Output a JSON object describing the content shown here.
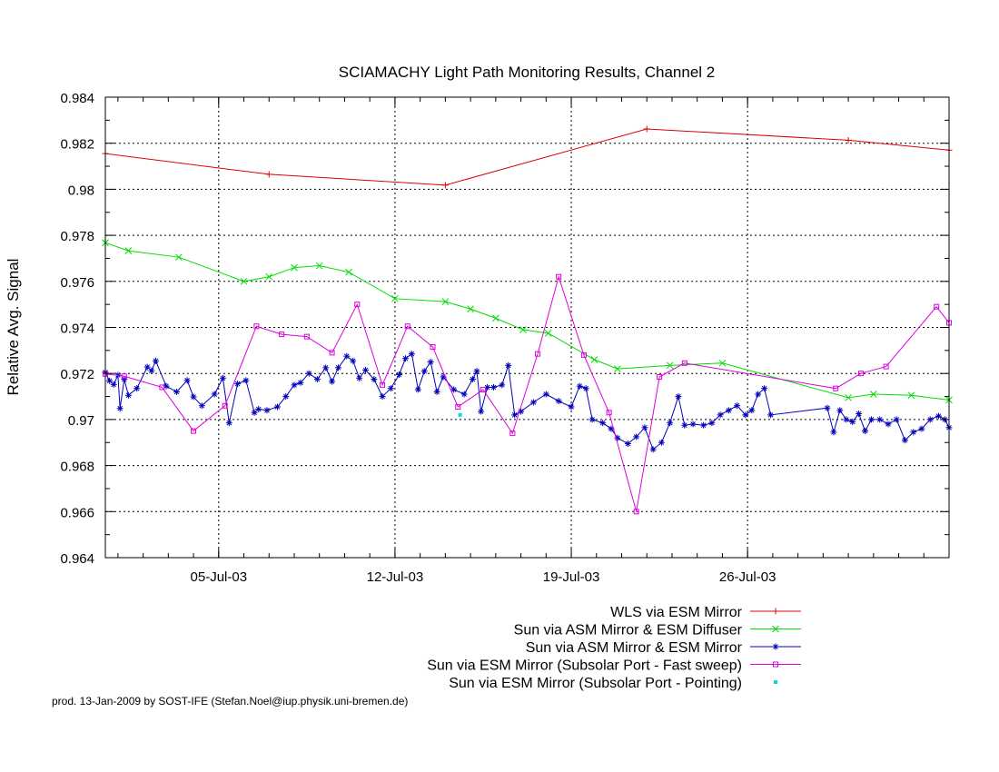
{
  "chart_data": {
    "type": "line",
    "title": "SCIAMACHY Light Path Monitoring Results, Channel 2",
    "ylabel": "Relative Avg. Signal",
    "xlabel": "",
    "footer": "prod. 13-Jan-2009 by SOST-IFE (Stefan.Noel@iup.physik.uni-bremen.de)",
    "xlim": [
      "2003-06-30T12:00",
      "2003-08-03T00:00"
    ],
    "ylim": [
      0.964,
      0.984
    ],
    "yticks": [
      0.964,
      0.966,
      0.968,
      0.97,
      0.972,
      0.974,
      0.976,
      0.978,
      0.98,
      0.982,
      0.984
    ],
    "ytick_labels": [
      "0.964",
      "0.966",
      "0.968",
      "0.97",
      "0.972",
      "0.974",
      "0.976",
      "0.978",
      "0.98",
      "0.982",
      "0.984"
    ],
    "xticks": [
      "2003-07-05",
      "2003-07-12",
      "2003-07-19",
      "2003-07-26"
    ],
    "xtick_labels": [
      "05-Jul-03",
      "12-Jul-03",
      "19-Jul-03",
      "26-Jul-03"
    ],
    "grid": true,
    "legend_position": "bottom-right, below plot",
    "series": [
      {
        "name": "WLS via ESM Mirror",
        "color": "#dd0000",
        "marker": "plus",
        "points": [
          [
            "2003-06-30T12:00",
            0.98155
          ],
          [
            "2003-07-07T00:00",
            0.98065
          ],
          [
            "2003-07-14T00:00",
            0.98018
          ],
          [
            "2003-07-22T00:00",
            0.98262
          ],
          [
            "2003-07-30T00:00",
            0.98213
          ],
          [
            "2003-08-03T00:00",
            0.9817
          ]
        ]
      },
      {
        "name": "Sun via ASM Mirror & ESM Diffuser",
        "color": "#00dd00",
        "marker": "cross",
        "points": [
          [
            "2003-06-30T12:00",
            0.97768
          ],
          [
            "2003-07-01T10:00",
            0.97733
          ],
          [
            "2003-07-03T10:00",
            0.97705
          ],
          [
            "2003-07-06T00:00",
            0.976
          ],
          [
            "2003-07-07T00:00",
            0.9762
          ],
          [
            "2003-07-08T00:00",
            0.9766
          ],
          [
            "2003-07-09T00:00",
            0.97668
          ],
          [
            "2003-07-10T04:00",
            0.9764
          ],
          [
            "2003-07-12T00:00",
            0.97525
          ],
          [
            "2003-07-14T00:00",
            0.97512
          ],
          [
            "2003-07-15T00:00",
            0.9748
          ],
          [
            "2003-07-16T00:00",
            0.9744
          ],
          [
            "2003-07-17T02:00",
            0.9739
          ],
          [
            "2003-07-18T02:00",
            0.97375
          ],
          [
            "2003-07-19T22:00",
            0.9726
          ],
          [
            "2003-07-20T20:00",
            0.9722
          ],
          [
            "2003-07-22T22:00",
            0.97235
          ],
          [
            "2003-07-25T00:00",
            0.97245
          ],
          [
            "2003-07-30T00:00",
            0.97095
          ],
          [
            "2003-07-31T00:00",
            0.9711
          ],
          [
            "2003-08-01T12:00",
            0.97105
          ],
          [
            "2003-08-03T00:00",
            0.97085
          ]
        ]
      },
      {
        "name": "Sun via ASM Mirror & ESM Mirror",
        "color": "#0000bb",
        "marker": "star",
        "points": [
          [
            "2003-06-30T12:00",
            0.97205
          ],
          [
            "2003-06-30T16:00",
            0.97168
          ],
          [
            "2003-06-30T20:00",
            0.97152
          ],
          [
            "2003-07-01T00:00",
            0.97193
          ],
          [
            "2003-07-01T02:00",
            0.97048
          ],
          [
            "2003-07-01T06:00",
            0.97175
          ],
          [
            "2003-07-01T10:00",
            0.97105
          ],
          [
            "2003-07-01T18:00",
            0.97135
          ],
          [
            "2003-07-02T04:00",
            0.97228
          ],
          [
            "2003-07-02T08:00",
            0.97212
          ],
          [
            "2003-07-02T12:00",
            0.97255
          ],
          [
            "2003-07-02T22:00",
            0.97145
          ],
          [
            "2003-07-03T08:00",
            0.9712
          ],
          [
            "2003-07-03T18:00",
            0.9717
          ],
          [
            "2003-07-04T00:00",
            0.97098
          ],
          [
            "2003-07-04T08:00",
            0.9706
          ],
          [
            "2003-07-04T20:00",
            0.9711
          ],
          [
            "2003-07-05T04:00",
            0.9718
          ],
          [
            "2003-07-05T10:00",
            0.96985
          ],
          [
            "2003-07-05T18:00",
            0.97155
          ],
          [
            "2003-07-06T02:00",
            0.9717
          ],
          [
            "2003-07-06T10:00",
            0.9703
          ],
          [
            "2003-07-06T14:00",
            0.97045
          ],
          [
            "2003-07-06T22:00",
            0.9704
          ],
          [
            "2003-07-07T08:00",
            0.97055
          ],
          [
            "2003-07-07T16:00",
            0.971
          ],
          [
            "2003-07-08T00:00",
            0.9715
          ],
          [
            "2003-07-08T06:00",
            0.9716
          ],
          [
            "2003-07-08T14:00",
            0.972
          ],
          [
            "2003-07-08T22:00",
            0.97175
          ],
          [
            "2003-07-09T06:00",
            0.97225
          ],
          [
            "2003-07-09T12:00",
            0.97165
          ],
          [
            "2003-07-09T18:00",
            0.97225
          ],
          [
            "2003-07-10T02:00",
            0.97275
          ],
          [
            "2003-07-10T08:00",
            0.97255
          ],
          [
            "2003-07-10T14:00",
            0.9718
          ],
          [
            "2003-07-10T20:00",
            0.97215
          ],
          [
            "2003-07-11T04:00",
            0.97175
          ],
          [
            "2003-07-11T12:00",
            0.971
          ],
          [
            "2003-07-11T20:00",
            0.97135
          ],
          [
            "2003-07-12T04:00",
            0.97195
          ],
          [
            "2003-07-12T10:00",
            0.97265
          ],
          [
            "2003-07-12T16:00",
            0.97285
          ],
          [
            "2003-07-12T22:00",
            0.9713
          ],
          [
            "2003-07-13T04:00",
            0.9721
          ],
          [
            "2003-07-13T10:00",
            0.9725
          ],
          [
            "2003-07-13T16:00",
            0.9712
          ],
          [
            "2003-07-13T22:00",
            0.97185
          ],
          [
            "2003-07-14T08:00",
            0.9713
          ],
          [
            "2003-07-14T18:00",
            0.9711
          ],
          [
            "2003-07-15T02:00",
            0.97175
          ],
          [
            "2003-07-15T06:00",
            0.9721
          ],
          [
            "2003-07-15T10:00",
            0.97035
          ],
          [
            "2003-07-15T16:00",
            0.9714
          ],
          [
            "2003-07-15T22:00",
            0.9714
          ],
          [
            "2003-07-16T06:00",
            0.9715
          ],
          [
            "2003-07-16T12:00",
            0.97235
          ],
          [
            "2003-07-16T18:00",
            0.9702
          ],
          [
            "2003-07-17T00:00",
            0.97035
          ],
          [
            "2003-07-17T12:00",
            0.97075
          ],
          [
            "2003-07-18T00:00",
            0.9711
          ],
          [
            "2003-07-18T12:00",
            0.9708
          ],
          [
            "2003-07-19T00:00",
            0.97055
          ],
          [
            "2003-07-19T08:00",
            0.97145
          ],
          [
            "2003-07-19T14:00",
            0.97135
          ],
          [
            "2003-07-19T20:00",
            0.97
          ],
          [
            "2003-07-20T06:00",
            0.96985
          ],
          [
            "2003-07-20T14:00",
            0.9696
          ],
          [
            "2003-07-20T20:00",
            0.9692
          ],
          [
            "2003-07-21T06:00",
            0.96895
          ],
          [
            "2003-07-21T14:00",
            0.96925
          ],
          [
            "2003-07-21T22:00",
            0.96965
          ],
          [
            "2003-07-22T06:00",
            0.9687
          ],
          [
            "2003-07-22T14:00",
            0.969
          ],
          [
            "2003-07-22T22:00",
            0.96985
          ],
          [
            "2003-07-23T06:00",
            0.971
          ],
          [
            "2003-07-23T12:00",
            0.96975
          ],
          [
            "2003-07-23T20:00",
            0.9698
          ],
          [
            "2003-07-24T06:00",
            0.96975
          ],
          [
            "2003-07-24T14:00",
            0.96985
          ],
          [
            "2003-07-24T22:00",
            0.9702
          ],
          [
            "2003-07-25T06:00",
            0.9704
          ],
          [
            "2003-07-25T14:00",
            0.9706
          ],
          [
            "2003-07-25T22:00",
            0.9702
          ],
          [
            "2003-07-26T04:00",
            0.9704
          ],
          [
            "2003-07-26T10:00",
            0.9711
          ],
          [
            "2003-07-26T16:00",
            0.97135
          ],
          [
            "2003-07-26T22:00",
            0.9702
          ],
          [
            "2003-07-29T04:00",
            0.9705
          ],
          [
            "2003-07-29T10:00",
            0.96945
          ],
          [
            "2003-07-29T16:00",
            0.9704
          ],
          [
            "2003-07-29T22:00",
            0.97
          ],
          [
            "2003-07-30T04:00",
            0.9699
          ],
          [
            "2003-07-30T10:00",
            0.97025
          ],
          [
            "2003-07-30T16:00",
            0.9695
          ],
          [
            "2003-07-30T22:00",
            0.97
          ],
          [
            "2003-07-31T06:00",
            0.97
          ],
          [
            "2003-07-31T14:00",
            0.9698
          ],
          [
            "2003-07-31T22:00",
            0.97
          ],
          [
            "2003-08-01T06:00",
            0.9691
          ],
          [
            "2003-08-01T14:00",
            0.96945
          ],
          [
            "2003-08-01T22:00",
            0.9696
          ],
          [
            "2003-08-02T06:00",
            0.97
          ],
          [
            "2003-08-02T14:00",
            0.97015
          ],
          [
            "2003-08-02T20:00",
            0.97
          ],
          [
            "2003-08-03T00:00",
            0.96965
          ]
        ]
      },
      {
        "name": "Sun via ESM Mirror (Subsolar Port - Fast sweep)",
        "color": "#dd00dd",
        "marker": "square",
        "points": [
          [
            "2003-06-30T12:00",
            0.97198
          ],
          [
            "2003-07-01T06:00",
            0.97188
          ],
          [
            "2003-07-02T18:00",
            0.9714
          ],
          [
            "2003-07-04T00:00",
            0.9695
          ],
          [
            "2003-07-05T06:00",
            0.9706
          ],
          [
            "2003-07-06T12:00",
            0.97405
          ],
          [
            "2003-07-07T12:00",
            0.9737
          ],
          [
            "2003-07-08T12:00",
            0.9736
          ],
          [
            "2003-07-09T12:00",
            0.9729
          ],
          [
            "2003-07-10T12:00",
            0.975
          ],
          [
            "2003-07-11T12:00",
            0.9715
          ],
          [
            "2003-07-12T12:00",
            0.97405
          ],
          [
            "2003-07-13T12:00",
            0.97315
          ],
          [
            "2003-07-14T12:00",
            0.97055
          ],
          [
            "2003-07-15T12:00",
            0.9713
          ],
          [
            "2003-07-16T16:00",
            0.9694
          ],
          [
            "2003-07-17T16:00",
            0.97285
          ],
          [
            "2003-07-18T12:00",
            0.9762
          ],
          [
            "2003-07-19T12:00",
            0.9728
          ],
          [
            "2003-07-20T12:00",
            0.9703
          ],
          [
            "2003-07-21T14:00",
            0.966
          ],
          [
            "2003-07-22T12:00",
            0.97185
          ],
          [
            "2003-07-23T12:00",
            0.97245
          ],
          [
            "2003-07-29T12:00",
            0.97135
          ],
          [
            "2003-07-30T12:00",
            0.972
          ],
          [
            "2003-07-31T12:00",
            0.9723
          ],
          [
            "2003-08-02T12:00",
            0.9749
          ],
          [
            "2003-08-03T00:00",
            0.9742
          ]
        ]
      },
      {
        "name": "Sun via ESM Mirror (Subsolar Port - Pointing)",
        "color": "#00dddd",
        "marker": "dot",
        "points": [
          [
            "2003-07-14T14:00",
            0.9702
          ]
        ]
      }
    ]
  }
}
